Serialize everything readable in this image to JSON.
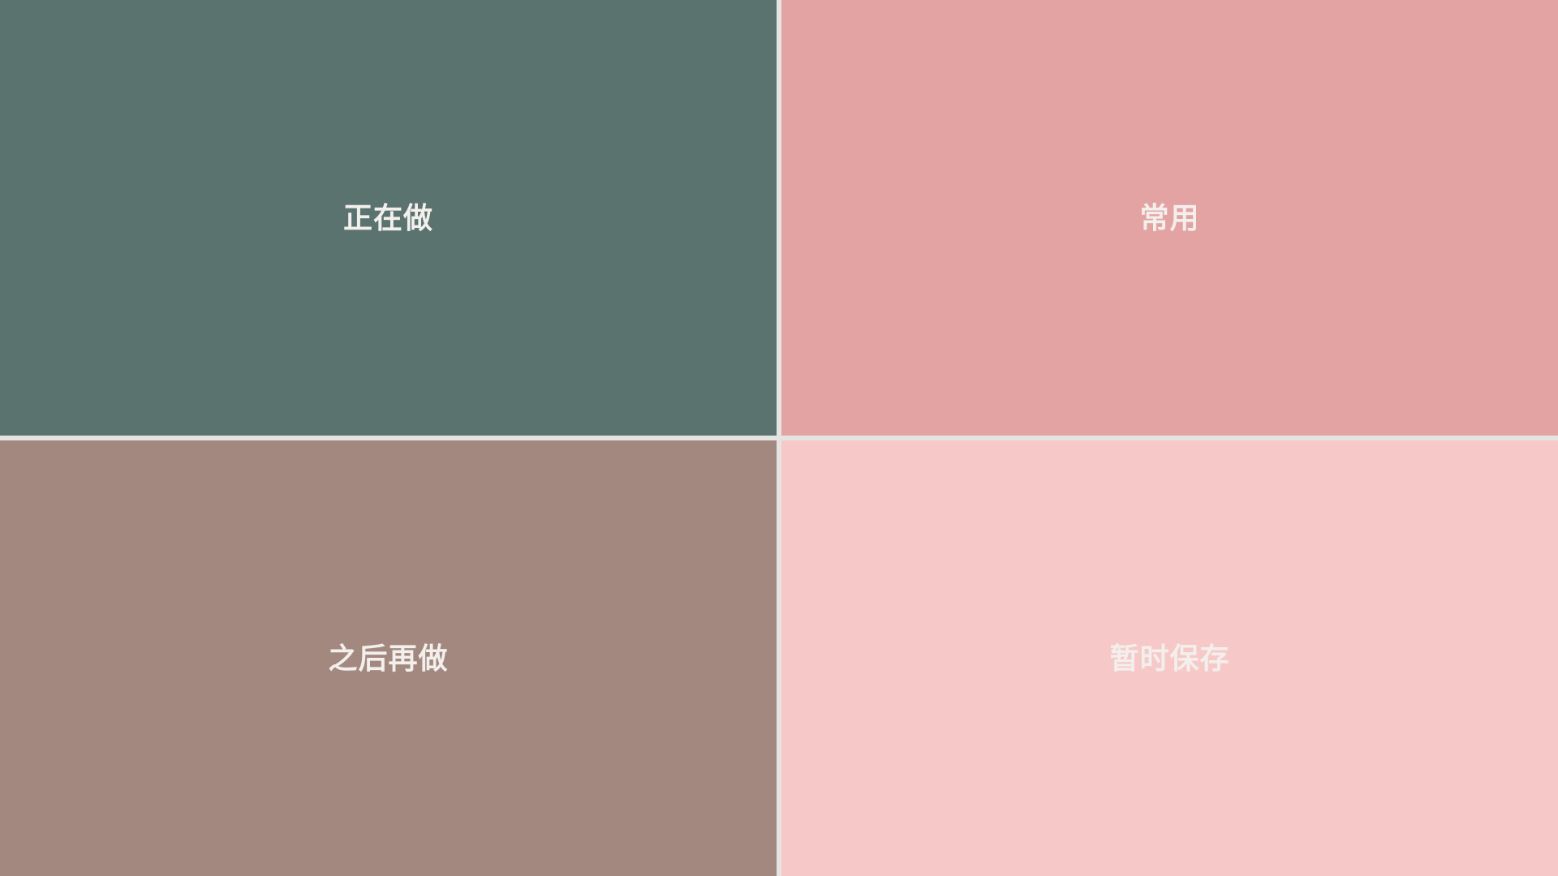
{
  "tiles": [
    {
      "id": "doing",
      "label": "正在做",
      "color": "#5a736f"
    },
    {
      "id": "frequent",
      "label": "常用",
      "color": "#e4a3a3"
    },
    {
      "id": "later",
      "label": "之后再做",
      "color": "#a2887f"
    },
    {
      "id": "temp",
      "label": "暂时保存",
      "color": "#f7c8c8"
    }
  ]
}
